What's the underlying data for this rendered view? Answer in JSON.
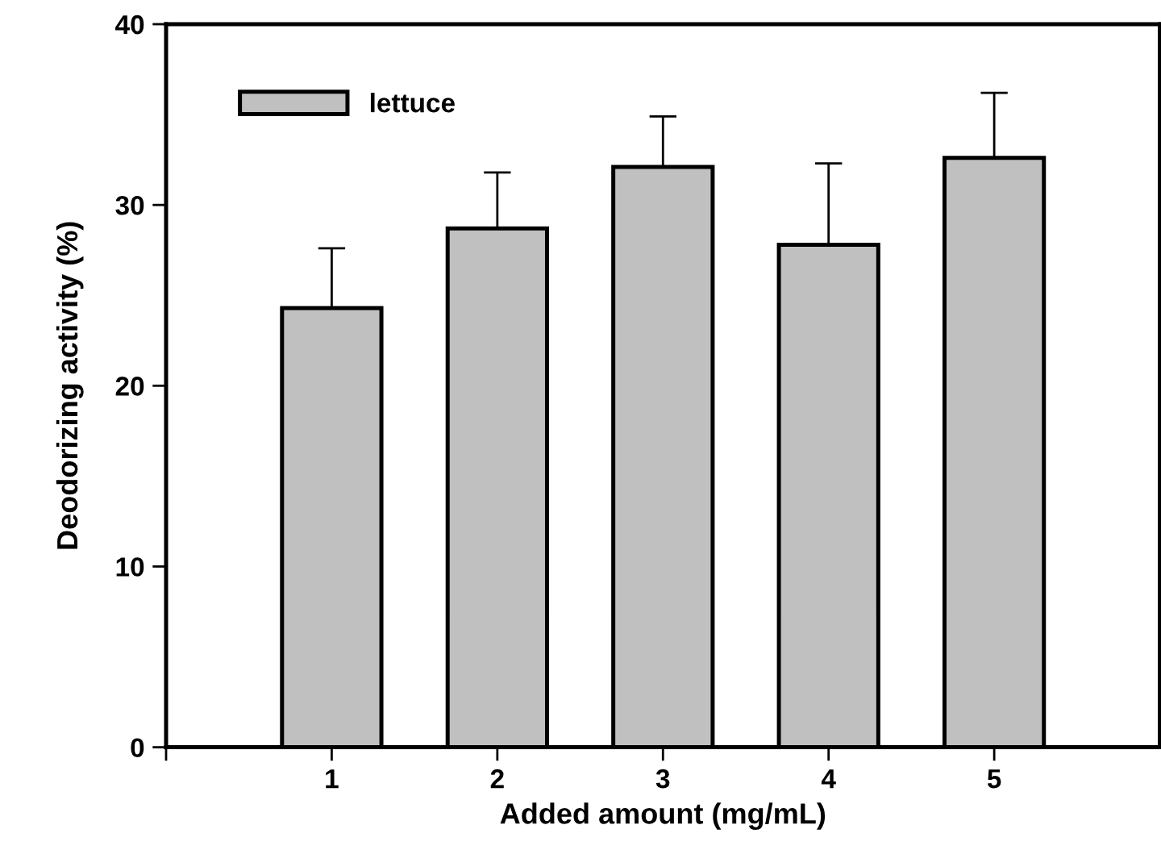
{
  "chart_data": {
    "type": "bar",
    "xlabel": "Added amount (mg/mL)",
    "ylabel": "Deodorizing activity (%)",
    "x": [
      1,
      2,
      3,
      4,
      5
    ],
    "series": [
      {
        "name": "lettuce",
        "color": "#c0c0c0",
        "values": [
          24.3,
          28.7,
          32.1,
          27.8,
          32.6
        ],
        "errors": [
          [
            24.3,
            27.6
          ],
          [
            28.7,
            31.8
          ],
          [
            32.1,
            34.9
          ],
          [
            27.8,
            32.3
          ],
          [
            32.6,
            36.2
          ]
        ]
      }
    ],
    "xlim": [
      0,
      6
    ],
    "xticks": [
      {
        "value": 0,
        "label": null
      },
      1,
      2,
      3,
      4,
      5
    ],
    "ylim": [
      0,
      40
    ],
    "yticks": [
      0,
      10,
      20,
      30,
      40
    ],
    "grid": false,
    "legend": "top left"
  }
}
